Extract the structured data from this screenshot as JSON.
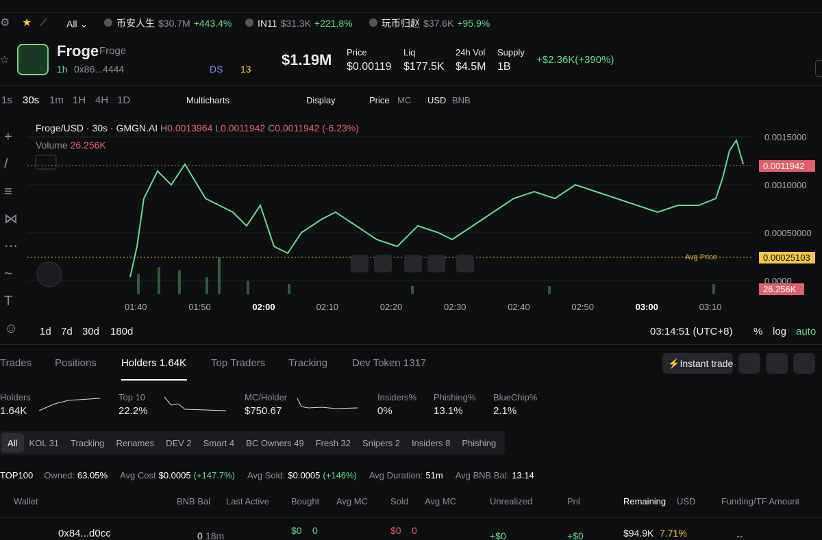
{
  "ticker": {
    "filter": "All",
    "items": [
      {
        "name": "币安人生",
        "price": "$30.7M",
        "change": "+443.4%"
      },
      {
        "name": "IN11",
        "price": "$31.3K",
        "change": "+221.8%"
      },
      {
        "name": "玩币归赵",
        "price": "$37.6K",
        "change": "+95.9%"
      }
    ]
  },
  "token": {
    "name": "Froge",
    "symbol": "Froge",
    "age": "1h",
    "address": "0x86...4444",
    "ds": "DS",
    "badge": "13"
  },
  "stats": {
    "mc": "$1.19M",
    "items": [
      {
        "label": "Price",
        "value": "$0.00119"
      },
      {
        "label": "Liq",
        "value": "$177.5K"
      },
      {
        "label": "24h Vol",
        "value": "$4.5M"
      },
      {
        "label": "Supply",
        "value": "1B"
      }
    ],
    "change": "+$2.36K(+390%)"
  },
  "toolbar": {
    "timeframes": [
      "1s",
      "30s",
      "1m",
      "1H",
      "4H",
      "1D"
    ],
    "multicharts": "Multicharts",
    "display": "Display",
    "price": "Price",
    "mc": "MC",
    "usd": "USD",
    "bnb": "BNB"
  },
  "chart": {
    "pair": "Froge/USD · 30s · GMGN.AI",
    "h_label": "H",
    "h": "0.0013964",
    "l_label": "L",
    "l": "0.0011942",
    "c_label": "C",
    "c": "0.0011942",
    "change": "(-6.23%)",
    "volume_label": "Volume",
    "volume": "26.256K",
    "current": "0.0011942",
    "avg_label": "Avg Price",
    "avg": "0.00025103",
    "price_ticks": [
      "0.0015000",
      "0.0010000",
      "0.00050000",
      "0.0000"
    ],
    "time_ticks": [
      "01:40",
      "01:50",
      "02:00",
      "02:10",
      "02:20",
      "02:30",
      "02:40",
      "02:50",
      "03:00",
      "03:10"
    ],
    "ranges": [
      "1d",
      "7d",
      "30d",
      "180d"
    ],
    "clock": "03:14:51 (UTC+8)",
    "pct": "%",
    "log": "log",
    "auto": "auto"
  },
  "tabs": {
    "items": [
      "Trades",
      "Positions",
      "Holders 1.64K",
      "Top Traders",
      "Tracking",
      "Dev Token 1317"
    ],
    "instant": "Instant trade"
  },
  "holder_stats": [
    {
      "label": "Holders",
      "value": "1.64K"
    },
    {
      "label": "Top 10",
      "value": "22.2%"
    },
    {
      "label": "MC/Holder",
      "value": "$750.67"
    },
    {
      "label": "Insiders%",
      "value": "0%"
    },
    {
      "label": "Phishing%",
      "value": "13.1%"
    },
    {
      "label": "BlueChip%",
      "value": "2.1%"
    }
  ],
  "filters": [
    "All",
    "KOL 31",
    "Tracking",
    "Renames",
    "DEV 2",
    "Smart 4",
    "BC Owners 49",
    "Fresh 32",
    "Snipers 2",
    "Insiders 8",
    "Phishing"
  ],
  "summary": {
    "title": "TOP100",
    "owned_label": "Owned:",
    "owned": "63.05%",
    "cost_label": "Avg Cost",
    "cost": "$0.0005",
    "cost_change": "(+147.7%)",
    "sold_label": "Avg Sold:",
    "sold": "$0.0005",
    "sold_change": "(+146%)",
    "duration_label": "Avg Duration:",
    "duration": "51m",
    "bal_label": "Avg BNB Bal:",
    "bal": "13.14"
  },
  "table": {
    "headers": [
      "Wallet",
      "BNB Bal",
      "Last Active",
      "Bought",
      "Avg MC",
      "Sold",
      "Avg MC",
      "Unrealized",
      "Pnl",
      "Remaining",
      "USD",
      "Funding/TF Amount"
    ],
    "row": {
      "wallet": "0x84...d0cc",
      "bal": "0",
      "active": "18m",
      "bought": "$0",
      "bought_mc": "0",
      "sold": "$0",
      "sold_mc": "0",
      "unrealized": "+$0",
      "pnl": "+$0",
      "remaining": "$94.9K",
      "remaining_pct": "7.71%",
      "funding": "--"
    }
  }
}
